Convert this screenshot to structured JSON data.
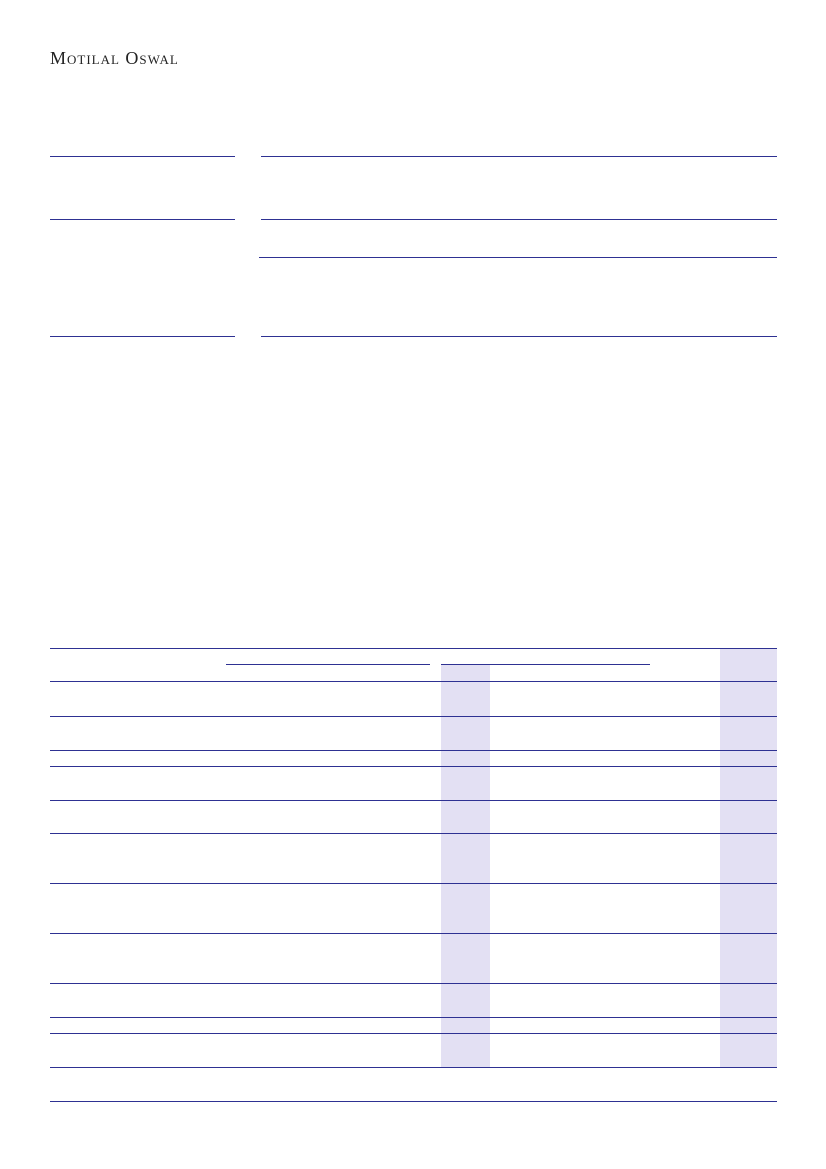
{
  "header": {
    "logo_text": "Motilal Oswal"
  },
  "colors": {
    "rule": "#2e3192",
    "highlight_column": "#e3e0f3"
  }
}
